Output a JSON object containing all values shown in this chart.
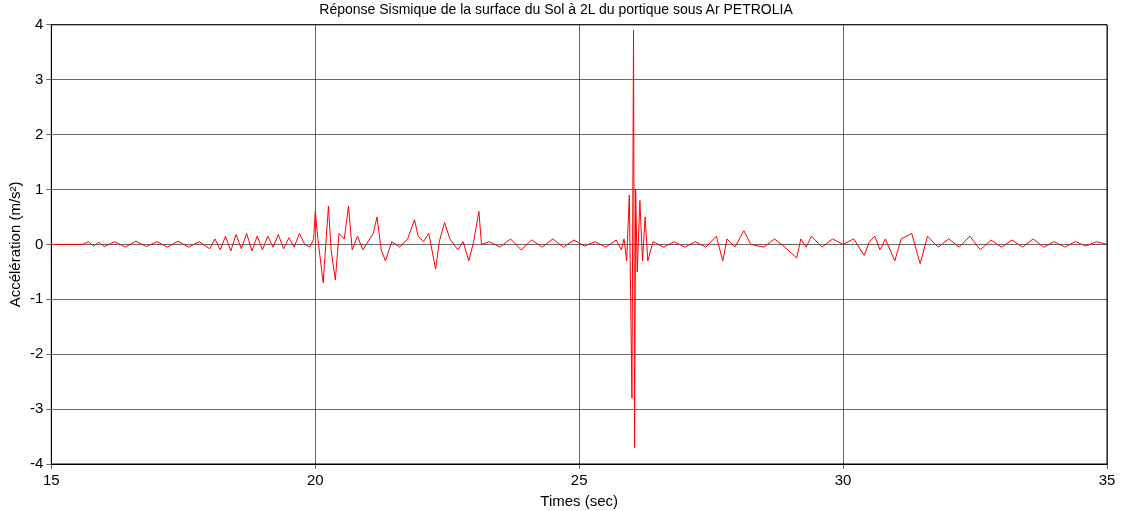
{
  "chart_data": {
    "type": "line",
    "title": "Réponse Sismique de la surface du Sol à 2L du portique sous Ar PETROLIA",
    "xlabel": "Times (sec)",
    "ylabel": "Accélération (m/s²)",
    "x": [
      15,
      15.6,
      15.7,
      15.8,
      15.9,
      16,
      16.2,
      16.4,
      16.6,
      16.8,
      17,
      17.2,
      17.4,
      17.6,
      17.8,
      18,
      18.1,
      18.2,
      18.3,
      18.4,
      18.5,
      18.6,
      18.7,
      18.8,
      18.9,
      19,
      19.1,
      19.2,
      19.3,
      19.4,
      19.5,
      19.6,
      19.7,
      19.8,
      19.9,
      19.97,
      20,
      20.05,
      20.15,
      20.2,
      20.25,
      20.3,
      20.38,
      20.45,
      20.55,
      20.63,
      20.7,
      20.8,
      20.9,
      21,
      21.1,
      21.17,
      21.25,
      21.33,
      21.45,
      21.6,
      21.75,
      21.88,
      21.95,
      22.05,
      22.15,
      22.28,
      22.35,
      22.45,
      22.55,
      22.7,
      22.8,
      22.91,
      23,
      23.1,
      23.15,
      23.3,
      23.5,
      23.7,
      23.9,
      24.1,
      24.3,
      24.5,
      24.7,
      24.9,
      25.1,
      25.3,
      25.5,
      25.7,
      25.8,
      25.85,
      25.9,
      25.95,
      26,
      26.03,
      26.05,
      26.07,
      26.1,
      26.15,
      26.2,
      26.25,
      26.3,
      26.4,
      26.6,
      26.8,
      27,
      27.2,
      27.4,
      27.6,
      27.72,
      27.8,
      27.95,
      28.12,
      28.25,
      28.5,
      28.7,
      28.9,
      29.12,
      29.2,
      29.3,
      29.4,
      29.6,
      29.8,
      30,
      30.2,
      30.4,
      30.5,
      30.6,
      30.7,
      30.8,
      30.98,
      31.1,
      31.3,
      31.46,
      31.6,
      31.8,
      32,
      32.2,
      32.4,
      32.6,
      32.8,
      33,
      33.2,
      33.4,
      33.6,
      33.8,
      34,
      34.2,
      34.4,
      34.6,
      34.8,
      35
    ],
    "series": [
      {
        "color": "#ff0000",
        "values": [
          0,
          0,
          0.05,
          -0.03,
          0.04,
          -0.04,
          0.05,
          -0.05,
          0.06,
          -0.04,
          0.05,
          -0.05,
          0.06,
          -0.05,
          0.05,
          -0.08,
          0.1,
          -0.1,
          0.15,
          -0.12,
          0.18,
          -0.08,
          0.2,
          -0.12,
          0.15,
          -0.1,
          0.15,
          -0.05,
          0.18,
          -0.08,
          0.12,
          -0.05,
          0.2,
          0,
          -0.05,
          0.1,
          0.6,
          0.1,
          -0.7,
          0,
          0.7,
          -0.1,
          -0.65,
          0.2,
          0.1,
          0.7,
          -0.1,
          0.15,
          -0.1,
          0.05,
          0.2,
          0.5,
          -0.1,
          -0.3,
          0.05,
          -0.05,
          0.1,
          0.45,
          0.15,
          0.05,
          0.2,
          -0.45,
          0.05,
          0.4,
          0.1,
          -0.1,
          0.05,
          -0.3,
          0.05,
          0.6,
          0,
          0.05,
          -0.05,
          0.1,
          -0.1,
          0.08,
          -0.05,
          0.1,
          -0.05,
          0.08,
          -0.03,
          0.05,
          -0.05,
          0.08,
          -0.1,
          0.1,
          -0.3,
          0.9,
          -2.8,
          3.9,
          -3.7,
          1,
          -0.5,
          0.8,
          -0.3,
          0.5,
          -0.3,
          0.05,
          -0.05,
          0.05,
          -0.05,
          0.05,
          -0.05,
          0.15,
          -0.3,
          0.1,
          -0.05,
          0.25,
          0,
          -0.05,
          0.1,
          -0.05,
          -0.25,
          0.1,
          -0.05,
          0.15,
          -0.05,
          0.1,
          0,
          0.1,
          -0.2,
          0.05,
          0.15,
          -0.1,
          0.1,
          -0.3,
          0.1,
          0.2,
          -0.35,
          0.15,
          -0.05,
          0.1,
          -0.05,
          0.15,
          -0.1,
          0.08,
          -0.05,
          0.08,
          -0.05,
          0.1,
          -0.05,
          0.05,
          -0.05,
          0.05,
          -0.03,
          0.05,
          0
        ]
      }
    ],
    "xlim": [
      15,
      35
    ],
    "xticks": [
      15,
      20,
      25,
      30,
      35
    ],
    "ylim": [
      -4,
      4
    ],
    "yticks": [
      -4,
      -3,
      -2,
      -1,
      0,
      1,
      2,
      3,
      4
    ],
    "grid": true,
    "legend": false,
    "marker": "none",
    "line_style": "solid"
  }
}
